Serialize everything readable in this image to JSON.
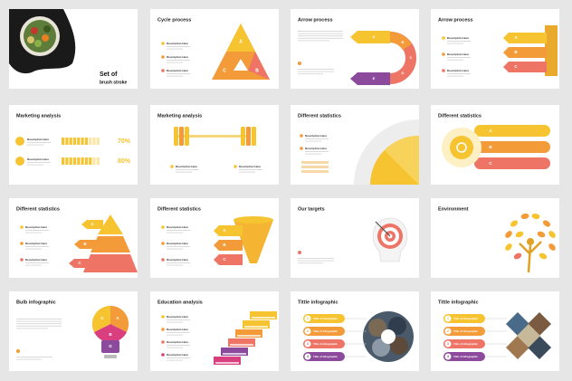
{
  "slides": [
    {
      "title": "Set of",
      "subtitle": "brush stroke"
    },
    {
      "title": "Cycle process",
      "letters": [
        "A",
        "B",
        "C"
      ],
      "descriptions": [
        "Description Here",
        "Description Here",
        "Description Here"
      ]
    },
    {
      "title": "Arrow process",
      "letters": [
        "A",
        "B",
        "C",
        "D",
        "E"
      ]
    },
    {
      "title": "Arrow process",
      "letters": [
        "A",
        "B",
        "C"
      ],
      "descriptions": [
        "Description Here",
        "Description Here",
        "Description Here"
      ]
    },
    {
      "title": "Marketing analysis",
      "descriptions": [
        "Description Here",
        "Description Here"
      ],
      "percents": [
        {
          "value": 70,
          "label": "70%"
        },
        {
          "value": 80,
          "label": "80%"
        }
      ]
    },
    {
      "title": "Marketing analysis",
      "descriptions": [
        "Description Here",
        "Description Here"
      ]
    },
    {
      "title": "Different statistics",
      "descriptions": [
        "Description Here",
        "Description Here"
      ]
    },
    {
      "title": "Different statistics",
      "letters": [
        "A",
        "B",
        "C"
      ]
    },
    {
      "title": "Different statistics",
      "letters": [
        "A",
        "B",
        "C"
      ],
      "descriptions": [
        "Description Here",
        "Description Here",
        "Description Here"
      ]
    },
    {
      "title": "Different statistics",
      "letters": [
        "A",
        "B",
        "C"
      ],
      "descriptions": [
        "Description Here",
        "Description Here",
        "Description Here"
      ]
    },
    {
      "title": "Our targets"
    },
    {
      "title": "Environment"
    },
    {
      "title": "Bulb infographic",
      "letters": [
        "A",
        "B",
        "C",
        "D"
      ]
    },
    {
      "title": "Education analysis",
      "descriptions": [
        "Description Here",
        "Description Here",
        "Description Here",
        "Description Here"
      ]
    },
    {
      "title": "Tittle infographic",
      "items": [
        {
          "num": "1",
          "label": "Title of infographic"
        },
        {
          "num": "2",
          "label": "Title of infographic"
        },
        {
          "num": "3",
          "label": "Title of infographic"
        },
        {
          "num": "4",
          "label": "Title of infographic"
        }
      ]
    },
    {
      "title": "Tittle infographic",
      "items": [
        {
          "num": "1",
          "label": "Title of infographic"
        },
        {
          "num": "2",
          "label": "Title of infographic"
        },
        {
          "num": "3",
          "label": "Title of infographic"
        },
        {
          "num": "4",
          "label": "Title of infographic"
        }
      ]
    }
  ]
}
